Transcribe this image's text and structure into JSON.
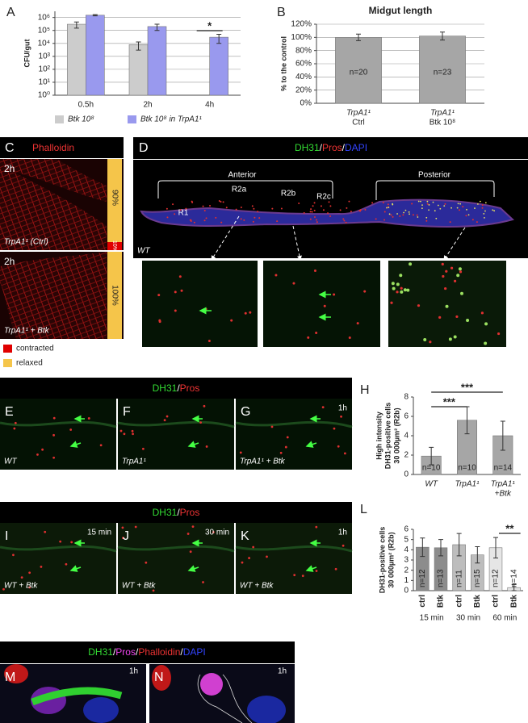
{
  "chart_data": [
    {
      "panel": "A",
      "type": "bar",
      "y_label": "CFU/gut",
      "log_scale": true,
      "grid": true,
      "categories": [
        "0.5h",
        "2h",
        "4h"
      ],
      "series": [
        {
          "name": "Btk 10⁸",
          "color": "#cccccc",
          "values": [
            300000,
            8000,
            null
          ],
          "errors": [
            150000,
            5000,
            null
          ]
        },
        {
          "name": "Btk 10⁸ in TrpA1¹",
          "color": "#9999ee",
          "values": [
            1500000,
            200000,
            30000
          ],
          "errors": [
            150000,
            100000,
            20000
          ]
        }
      ],
      "ylim": [
        1,
        3000000
      ],
      "yticks": [
        {
          "value": 1,
          "label": "10⁰"
        },
        {
          "value": 10,
          "label": "10¹"
        },
        {
          "value": 100,
          "label": "10²"
        },
        {
          "value": 1000,
          "label": "10³"
        },
        {
          "value": 10000,
          "label": "10⁴"
        },
        {
          "value": 100000,
          "label": "10⁵"
        },
        {
          "value": 1000000,
          "label": "10⁶"
        }
      ],
      "significance_labels": [
        "*"
      ]
    },
    {
      "panel": "B",
      "type": "bar",
      "title": "Midgut length",
      "y_label": "% to the control",
      "grid": true,
      "categories": [
        [
          "TrpA1¹",
          "Ctrl"
        ],
        [
          "TrpA1¹",
          "Btk 10⁸"
        ]
      ],
      "values": [
        100,
        102
      ],
      "errors": [
        5,
        6
      ],
      "color": "#a6a6a6",
      "n_labels": [
        "n=20",
        "n=23"
      ],
      "ylim": [
        0,
        120
      ],
      "yticks": [
        {
          "value": 0,
          "label": "0%"
        },
        {
          "value": 20,
          "label": "20%"
        },
        {
          "value": 40,
          "label": "40%"
        },
        {
          "value": 60,
          "label": "60%"
        },
        {
          "value": 80,
          "label": "80%"
        },
        {
          "value": 100,
          "label": "100%"
        },
        {
          "value": 120,
          "label": "120%"
        }
      ]
    },
    {
      "panel": "H",
      "type": "bar",
      "y_label": [
        "High intensity",
        "DH31-positive cells",
        "30 000µm² (R2b)"
      ],
      "grid": false,
      "categories": [
        "WT",
        "TrpA1¹",
        [
          "TrpA1¹",
          "+Btk"
        ]
      ],
      "values": [
        1.9,
        5.6,
        4.0
      ],
      "errors": [
        0.9,
        1.4,
        1.5
      ],
      "color": "#a6a6a6",
      "n_labels": [
        "n=10",
        "n=10",
        "n=14"
      ],
      "ylim": [
        0,
        8
      ],
      "yticks": [
        0,
        2,
        4,
        6,
        8
      ],
      "significance_labels": [
        "***",
        "***"
      ]
    },
    {
      "panel": "L",
      "type": "bar",
      "y_label": [
        "DH31-positive cells",
        "30 000µm² (R2b)"
      ],
      "grid": false,
      "categories": [
        "ctrl",
        "Btk",
        "ctrl",
        "Btk",
        "ctrl",
        "Btk"
      ],
      "group_labels": [
        "15 min",
        "30 min",
        "60 min"
      ],
      "values": [
        4.25,
        4.2,
        4.5,
        3.5,
        4.2,
        0.3
      ],
      "errors": [
        0.9,
        0.8,
        1.1,
        0.8,
        1.0,
        0.3
      ],
      "colors": [
        "#8c8c8c",
        "#8c8c8c",
        "#bdbdbd",
        "#bdbdbd",
        "#e6e6e6",
        "#e6e6e6"
      ],
      "n_labels": [
        "n=12",
        "n=13",
        "n=11",
        "n=15",
        "n=12",
        "n=14"
      ],
      "ylim": [
        0,
        6
      ],
      "yticks": [
        0,
        1,
        2,
        3,
        4,
        5,
        6
      ],
      "significance_labels": [
        "**"
      ]
    }
  ],
  "panels": {
    "C": {
      "letter": "C",
      "stain": "Phalloidin",
      "images": [
        {
          "time": "2h",
          "genotype": "TrpA1¹ (Ctrl)",
          "percent_relaxed": "90%",
          "percent_contracted": "10%"
        },
        {
          "time": "2h",
          "genotype": "TrpA1¹ + Btk",
          "percent_relaxed": "100%"
        }
      ],
      "legend": [
        "contracted",
        "relaxed"
      ]
    },
    "D": {
      "letter": "D",
      "stain_parts": [
        "DH31",
        "/",
        "Pros",
        "/",
        "DAPI"
      ],
      "regions": [
        "Anterior",
        "Posterior"
      ],
      "subregions": [
        "R1",
        "R2a",
        "R2b",
        "R2c"
      ],
      "genotype": "WT"
    },
    "EFG": {
      "stain_parts": [
        "DH31",
        "/",
        "Pros"
      ],
      "images": [
        {
          "letter": "E",
          "genotype": "WT"
        },
        {
          "letter": "F",
          "genotype": "TrpA1¹"
        },
        {
          "letter": "G",
          "genotype": "TrpA1¹ + Btk",
          "time": "1h"
        }
      ]
    },
    "IJK": {
      "stain_parts": [
        "DH31",
        "/",
        "Pros"
      ],
      "images": [
        {
          "letter": "I",
          "time": "15 min",
          "genotype": "WT + Btk"
        },
        {
          "letter": "J",
          "time": "30 min",
          "genotype": "WT + Btk"
        },
        {
          "letter": "K",
          "time": "1h",
          "genotype": "WT + Btk"
        }
      ]
    },
    "MN": {
      "stain_parts": [
        "DH31",
        "/",
        "Pros",
        "/",
        "Phalloidin",
        "/",
        "DAPI"
      ],
      "images": [
        {
          "letter": "M",
          "time": "1h"
        },
        {
          "letter": "N",
          "time": "1h"
        }
      ]
    }
  }
}
